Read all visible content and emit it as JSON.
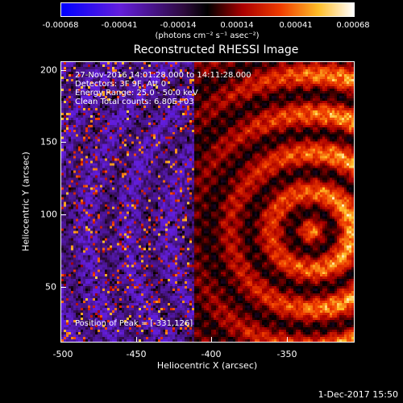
{
  "colorbar": {
    "tick_labels": [
      "-0.00068",
      "-0.00041",
      "-0.00014",
      "0.00014",
      "0.00041",
      "0.00068"
    ],
    "units": "(photons cm⁻² s⁻¹ asec⁻²)"
  },
  "image": {
    "title": "Reconstructed RHESSI Image",
    "info": [
      "27-Nov-2016 14:01:28.000 to 14:11:28.000",
      "Detectors: 3F 9F, Att 0",
      "Energy Range: 25.0 - 50.0 keV",
      "Clean    Total counts: 6.80E+03"
    ],
    "peak": "Position of Peak = [-331,126]"
  },
  "axes": {
    "x_label": "Heliocentric X (arcsec)",
    "y_label": "Heliocentric Y (arcsec)",
    "x_ticks": [
      "-500",
      "-450",
      "-400",
      "-350"
    ],
    "y_ticks": [
      "200",
      "150",
      "100",
      "50"
    ]
  },
  "footer": {
    "date": "1-Dec-2017 15:50"
  }
}
